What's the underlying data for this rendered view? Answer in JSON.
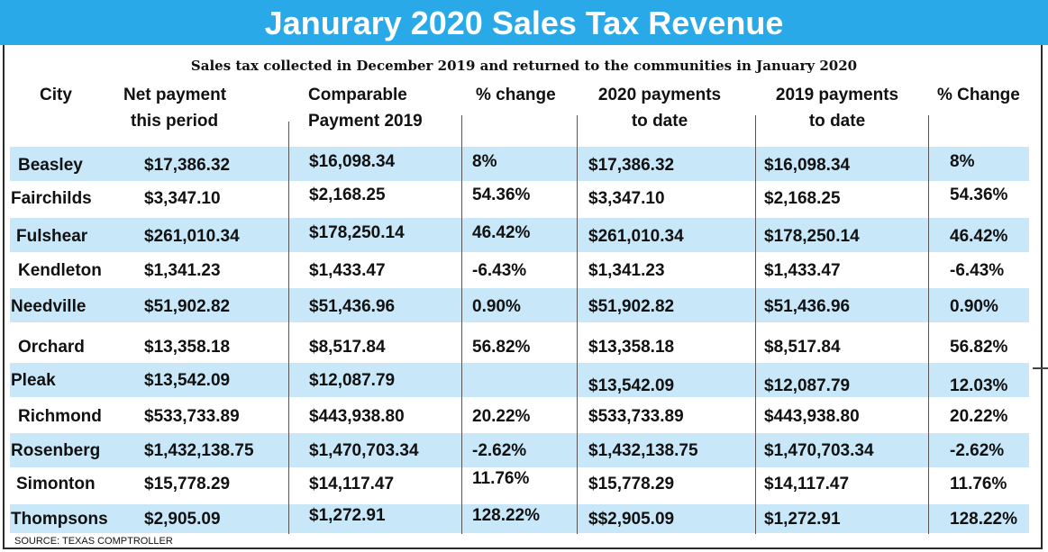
{
  "title": "Janurary 2020 Sales Tax Revenue",
  "subtitle": "Sales tax collected in December 2019 and returned to the communities in January 2020",
  "columns": [
    {
      "line1": "City",
      "line2": ""
    },
    {
      "line1": "Net payment",
      "line2": "this period"
    },
    {
      "line1": "Comparable",
      "line2": "Payment 2019"
    },
    {
      "line1": "% change",
      "line2": ""
    },
    {
      "line1": "2020 payments",
      "line2": "to date"
    },
    {
      "line1": "2019 payments",
      "line2": "to date"
    },
    {
      "line1": "% Change",
      "line2": ""
    }
  ],
  "rows": [
    {
      "city": "Beasley",
      "net": "$17,386.32",
      "comp": "$16,098.34",
      "pct": "8%",
      "ytd2020": "$17,386.32",
      "ytd2019": "$16,098.34",
      "pct_ytd": "8%"
    },
    {
      "city": "Fairchilds",
      "net": "$3,347.10",
      "comp": "$2,168.25",
      "pct": "54.36%",
      "ytd2020": "$3,347.10",
      "ytd2019": "$2,168.25",
      "pct_ytd": "54.36%"
    },
    {
      "city": "Fulshear",
      "net": "$261,010.34",
      "comp": "$178,250.14",
      "pct": "46.42%",
      "ytd2020": "$261,010.34",
      "ytd2019": "$178,250.14",
      "pct_ytd": "46.42%"
    },
    {
      "city": "Kendleton",
      "net": "$1,341.23",
      "comp": "$1,433.47",
      "pct": "-6.43%",
      "ytd2020": "$1,341.23",
      "ytd2019": "$1,433.47",
      "pct_ytd": "-6.43%"
    },
    {
      "city": "Needville",
      "net": "$51,902.82",
      "comp": "$51,436.96",
      "pct": "0.90%",
      "ytd2020": "$51,902.82",
      "ytd2019": "$51,436.96",
      "pct_ytd": "0.90%"
    },
    {
      "city": "Orchard",
      "net": "$13,358.18",
      "comp": "$8,517.84",
      "pct": "56.82%",
      "ytd2020": "$13,358.18",
      "ytd2019": "$8,517.84",
      "pct_ytd": "56.82%"
    },
    {
      "city": "Pleak",
      "net": "$13,542.09",
      "comp": "$12,087.79",
      "pct": "",
      "ytd2020": "$13,542.09",
      "ytd2019": "$12,087.79",
      "pct_ytd": "12.03%"
    },
    {
      "city": "Richmond",
      "net": "$533,733.89",
      "comp": "$443,938.80",
      "pct": "20.22%",
      "ytd2020": "$533,733.89",
      "ytd2019": "$443,938.80",
      "pct_ytd": "20.22%"
    },
    {
      "city": "Rosenberg",
      "net": "$1,432,138.75",
      "comp": "$1,470,703.34",
      "pct": "-2.62%",
      "ytd2020": "$1,432,138.75",
      "ytd2019": "$1,470,703.34",
      "pct_ytd": "-2.62%"
    },
    {
      "city": "Simonton",
      "net": "$15,778.29",
      "comp": "$14,117.47",
      "pct": "11.76%",
      "ytd2020": "$15,778.29",
      "ytd2019": "$14,117.47",
      "pct_ytd": "11.76%"
    },
    {
      "city": "Thompsons",
      "net": "$2,905.09",
      "comp": "$1,272.91",
      "pct": "128.22%",
      "ytd2020": "$$2,905.09",
      "ytd2019": "$1,272.91",
      "pct_ytd": "128.22%"
    }
  ],
  "source": "SOURCE: TEXAS COMPTROLLER",
  "colors": {
    "title_bar": "#2aa9e8",
    "row_band": "#c8e7f8",
    "title_text": "#ffffff"
  }
}
